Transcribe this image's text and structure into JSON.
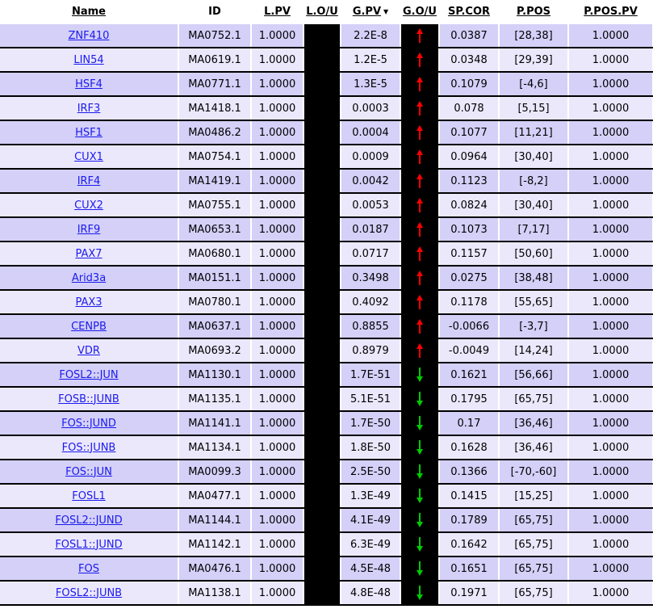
{
  "headers": {
    "name": "Name",
    "id": "ID",
    "lpv": "L.PV",
    "lou": "L.O/U",
    "gpv": "G.PV",
    "gou": "G.O/U",
    "spcor": "SP.COR",
    "ppos": "P.POS",
    "ppospv": "P.POS.PV"
  },
  "colors": {
    "row_odd": "#d4d0f8",
    "row_even": "#ece8fc",
    "link": "#1a1aee",
    "arrow_up": "#ff0000",
    "arrow_down": "#00cc00"
  },
  "rows": [
    {
      "name": "ZNF410",
      "id": "MA0752.1",
      "lpv": "1.0000",
      "gpv": "2.2E-8",
      "gou": "up",
      "spcor": "0.0387",
      "ppos": "[28,38]",
      "ppospv": "1.0000"
    },
    {
      "name": "LIN54",
      "id": "MA0619.1",
      "lpv": "1.0000",
      "gpv": "1.2E-5",
      "gou": "up",
      "spcor": "0.0348",
      "ppos": "[29,39]",
      "ppospv": "1.0000"
    },
    {
      "name": "HSF4",
      "id": "MA0771.1",
      "lpv": "1.0000",
      "gpv": "1.3E-5",
      "gou": "up",
      "spcor": "0.1079",
      "ppos": "[-4,6]",
      "ppospv": "1.0000"
    },
    {
      "name": "IRF3",
      "id": "MA1418.1",
      "lpv": "1.0000",
      "gpv": "0.0003",
      "gou": "up",
      "spcor": "0.078",
      "ppos": "[5,15]",
      "ppospv": "1.0000"
    },
    {
      "name": "HSF1",
      "id": "MA0486.2",
      "lpv": "1.0000",
      "gpv": "0.0004",
      "gou": "up",
      "spcor": "0.1077",
      "ppos": "[11,21]",
      "ppospv": "1.0000"
    },
    {
      "name": "CUX1",
      "id": "MA0754.1",
      "lpv": "1.0000",
      "gpv": "0.0009",
      "gou": "up",
      "spcor": "0.0964",
      "ppos": "[30,40]",
      "ppospv": "1.0000"
    },
    {
      "name": "IRF4",
      "id": "MA1419.1",
      "lpv": "1.0000",
      "gpv": "0.0042",
      "gou": "up",
      "spcor": "0.1123",
      "ppos": "[-8,2]",
      "ppospv": "1.0000"
    },
    {
      "name": "CUX2",
      "id": "MA0755.1",
      "lpv": "1.0000",
      "gpv": "0.0053",
      "gou": "up",
      "spcor": "0.0824",
      "ppos": "[30,40]",
      "ppospv": "1.0000"
    },
    {
      "name": "IRF9",
      "id": "MA0653.1",
      "lpv": "1.0000",
      "gpv": "0.0187",
      "gou": "up",
      "spcor": "0.1073",
      "ppos": "[7,17]",
      "ppospv": "1.0000"
    },
    {
      "name": "PAX7",
      "id": "MA0680.1",
      "lpv": "1.0000",
      "gpv": "0.0717",
      "gou": "up",
      "spcor": "0.1157",
      "ppos": "[50,60]",
      "ppospv": "1.0000"
    },
    {
      "name": "Arid3a",
      "id": "MA0151.1",
      "lpv": "1.0000",
      "gpv": "0.3498",
      "gou": "up",
      "spcor": "0.0275",
      "ppos": "[38,48]",
      "ppospv": "1.0000"
    },
    {
      "name": "PAX3",
      "id": "MA0780.1",
      "lpv": "1.0000",
      "gpv": "0.4092",
      "gou": "up",
      "spcor": "0.1178",
      "ppos": "[55,65]",
      "ppospv": "1.0000"
    },
    {
      "name": "CENPB",
      "id": "MA0637.1",
      "lpv": "1.0000",
      "gpv": "0.8855",
      "gou": "up",
      "spcor": "-0.0066",
      "ppos": "[-3,7]",
      "ppospv": "1.0000"
    },
    {
      "name": "VDR",
      "id": "MA0693.2",
      "lpv": "1.0000",
      "gpv": "0.8979",
      "gou": "up",
      "spcor": "-0.0049",
      "ppos": "[14,24]",
      "ppospv": "1.0000"
    },
    {
      "name": "FOSL2::JUN",
      "id": "MA1130.1",
      "lpv": "1.0000",
      "gpv": "1.7E-51",
      "gou": "down",
      "spcor": "0.1621",
      "ppos": "[56,66]",
      "ppospv": "1.0000"
    },
    {
      "name": "FOSB::JUNB",
      "id": "MA1135.1",
      "lpv": "1.0000",
      "gpv": "5.1E-51",
      "gou": "down",
      "spcor": "0.1795",
      "ppos": "[65,75]",
      "ppospv": "1.0000"
    },
    {
      "name": "FOS::JUND",
      "id": "MA1141.1",
      "lpv": "1.0000",
      "gpv": "1.7E-50",
      "gou": "down",
      "spcor": "0.17",
      "ppos": "[36,46]",
      "ppospv": "1.0000"
    },
    {
      "name": "FOS::JUNB",
      "id": "MA1134.1",
      "lpv": "1.0000",
      "gpv": "1.8E-50",
      "gou": "down",
      "spcor": "0.1628",
      "ppos": "[36,46]",
      "ppospv": "1.0000"
    },
    {
      "name": "FOS::JUN",
      "id": "MA0099.3",
      "lpv": "1.0000",
      "gpv": "2.5E-50",
      "gou": "down",
      "spcor": "0.1366",
      "ppos": "[-70,-60]",
      "ppospv": "1.0000"
    },
    {
      "name": "FOSL1",
      "id": "MA0477.1",
      "lpv": "1.0000",
      "gpv": "1.3E-49",
      "gou": "down",
      "spcor": "0.1415",
      "ppos": "[15,25]",
      "ppospv": "1.0000"
    },
    {
      "name": "FOSL2::JUND",
      "id": "MA1144.1",
      "lpv": "1.0000",
      "gpv": "4.1E-49",
      "gou": "down",
      "spcor": "0.1789",
      "ppos": "[65,75]",
      "ppospv": "1.0000"
    },
    {
      "name": "FOSL1::JUND",
      "id": "MA1142.1",
      "lpv": "1.0000",
      "gpv": "6.3E-49",
      "gou": "down",
      "spcor": "0.1642",
      "ppos": "[65,75]",
      "ppospv": "1.0000"
    },
    {
      "name": "FOS",
      "id": "MA0476.1",
      "lpv": "1.0000",
      "gpv": "4.5E-48",
      "gou": "down",
      "spcor": "0.1651",
      "ppos": "[65,75]",
      "ppospv": "1.0000"
    },
    {
      "name": "FOSL2::JUNB",
      "id": "MA1138.1",
      "lpv": "1.0000",
      "gpv": "4.8E-48",
      "gou": "down",
      "spcor": "0.1971",
      "ppos": "[65,75]",
      "ppospv": "1.0000"
    }
  ]
}
